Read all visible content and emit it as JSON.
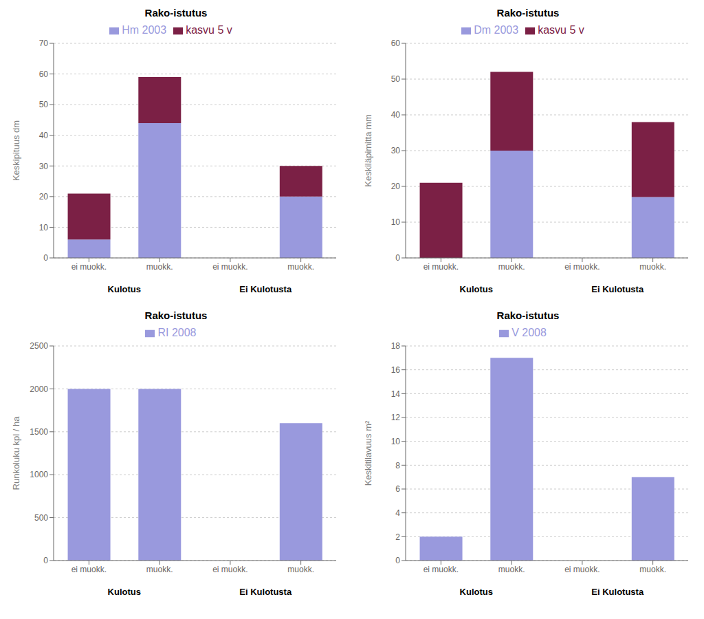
{
  "chart_data": [
    {
      "type": "bar",
      "title": "Rako-istutus",
      "y_label": "Keskipituus dm",
      "categories": [
        "ei muokk.",
        "muokk.",
        "ei muokk.",
        "muokk."
      ],
      "series": [
        {
          "name": "Hm 2003",
          "color": "#9999dd",
          "values": [
            6,
            44,
            0,
            20
          ]
        },
        {
          "name": "kasvu 5 v",
          "color": "#7b2045",
          "values": [
            15,
            15,
            0,
            10
          ]
        }
      ],
      "stacked": true,
      "ylim": [
        0,
        70
      ],
      "yticks": [
        0,
        10,
        20,
        30,
        40,
        50,
        60,
        70
      ],
      "grid": true,
      "legend": "top",
      "annotations": [
        "Kulotus",
        "Ei Kulotusta"
      ]
    },
    {
      "type": "bar",
      "title": "Rako-istutus",
      "y_label": "Keskiläpimitta mm",
      "categories": [
        "ei muokk.",
        "muokk.",
        "ei muokk.",
        "muokk."
      ],
      "series": [
        {
          "name": "Dm 2003",
          "color": "#9999dd",
          "values": [
            0,
            30,
            0,
            17
          ]
        },
        {
          "name": "kasvu 5 v",
          "color": "#7b2045",
          "values": [
            21,
            22,
            0,
            21
          ]
        }
      ],
      "stacked": true,
      "ylim": [
        0,
        60
      ],
      "yticks": [
        0,
        10,
        20,
        30,
        40,
        50,
        60
      ],
      "grid": true,
      "legend": "top",
      "annotations": [
        "Kulotus",
        "Ei Kulotusta"
      ]
    },
    {
      "type": "bar",
      "title": "Rako-istutus",
      "y_label": "Runkoluku kpl / ha",
      "categories": [
        "ei muokk.",
        "muokk.",
        "ei muokk.",
        "muokk."
      ],
      "series": [
        {
          "name": "RI 2008",
          "color": "#9999dd",
          "values": [
            2000,
            2000,
            0,
            1600
          ]
        }
      ],
      "ylim": [
        0,
        2500
      ],
      "yticks": [
        0,
        500,
        1000,
        1500,
        2000,
        2500
      ],
      "grid": true,
      "legend": "top",
      "annotations": [
        "Kulotus",
        "Ei Kulotusta"
      ]
    },
    {
      "type": "bar",
      "title": "Rako-istutus",
      "y_label": "Keskitilavuus m²",
      "categories": [
        "ei muokk.",
        "muokk.",
        "ei muokk.",
        "muokk."
      ],
      "series": [
        {
          "name": "V 2008",
          "color": "#9999dd",
          "values": [
            2,
            17,
            0,
            7
          ]
        }
      ],
      "ylim": [
        0,
        18
      ],
      "yticks": [
        0,
        2,
        4,
        6,
        8,
        10,
        12,
        14,
        16,
        18
      ],
      "grid": true,
      "legend": "top",
      "annotations": [
        "Kulotus",
        "Ei Kulotusta"
      ]
    }
  ]
}
